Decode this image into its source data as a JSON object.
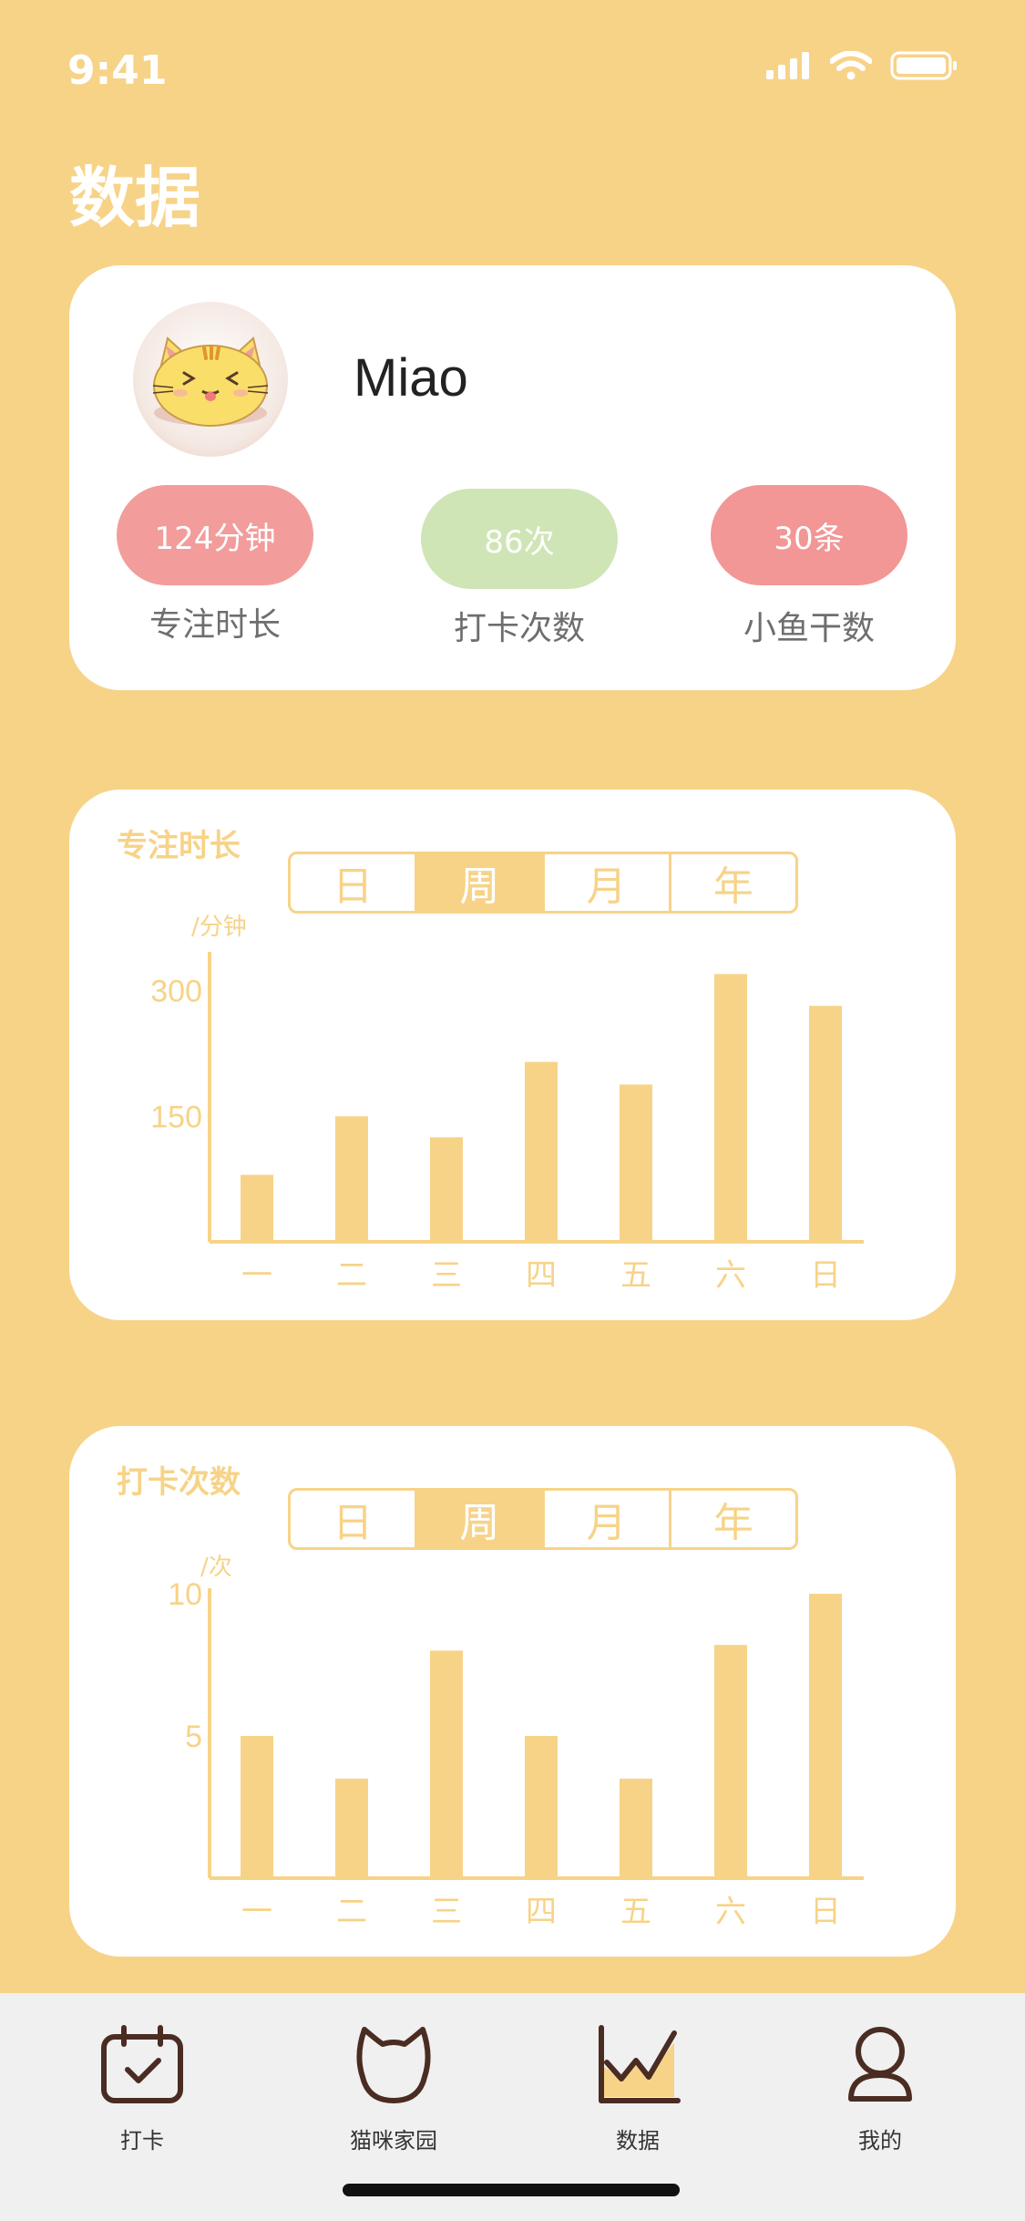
{
  "status": {
    "time": "9:41"
  },
  "page": {
    "title": "数据"
  },
  "profile": {
    "name": "Miao",
    "stats": [
      {
        "value": "124分钟",
        "label": "专注时长",
        "color": "#F29C9C"
      },
      {
        "value": "86次",
        "label": "打卡次数",
        "color": "#CFE5B6"
      },
      {
        "value": "30条",
        "label": "小鱼干数",
        "color": "#F29696"
      }
    ]
  },
  "segments": [
    "日",
    "周",
    "月",
    "年"
  ],
  "charts": {
    "focus": {
      "title": "专注时长",
      "unit": "/分钟"
    },
    "checkin": {
      "title": "打卡次数",
      "unit": "/次"
    }
  },
  "chart_data": [
    {
      "type": "bar",
      "title": "专注时长",
      "ylabel": "/分钟",
      "categories": [
        "一",
        "二",
        "三",
        "四",
        "五",
        "六",
        "日"
      ],
      "values": [
        80,
        150,
        125,
        215,
        188,
        320,
        282
      ],
      "yticks": [
        150,
        300
      ],
      "ylim": [
        0,
        340
      ],
      "selected_period": "周"
    },
    {
      "type": "bar",
      "title": "打卡次数",
      "ylabel": "/次",
      "categories": [
        "一",
        "二",
        "三",
        "四",
        "五",
        "六",
        "日"
      ],
      "values": [
        5,
        3.5,
        8,
        5,
        3.5,
        8.2,
        10
      ],
      "yticks": [
        5,
        10
      ],
      "ylim": [
        0,
        10
      ],
      "selected_period": "周"
    }
  ],
  "tabbar": {
    "items": [
      {
        "label": "打卡",
        "icon": "calendar-check-icon"
      },
      {
        "label": "猫咪家园",
        "icon": "cat-head-icon"
      },
      {
        "label": "数据",
        "icon": "chart-icon"
      },
      {
        "label": "我的",
        "icon": "user-icon"
      }
    ]
  },
  "colors": {
    "background": "#F7D388",
    "accent": "#F7D388",
    "card": "#FFFFFF",
    "tabbar": "#F0F0F0",
    "icon": "#4A2C22"
  }
}
